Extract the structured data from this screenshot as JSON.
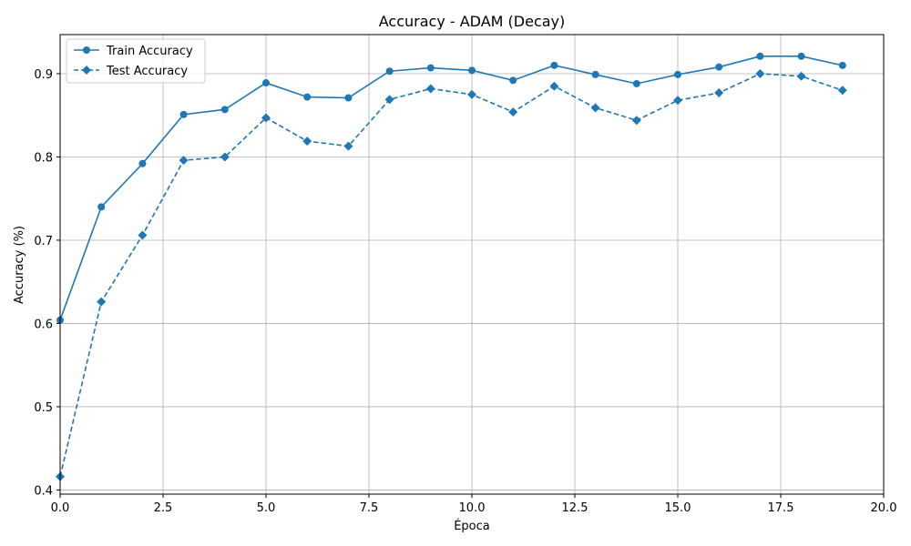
{
  "chart_data": {
    "type": "line",
    "title": "Accuracy - ADAM (Decay)",
    "xlabel": "Época",
    "ylabel": "Accuracy (%)",
    "xlim": [
      0,
      20
    ],
    "ylim": [
      0.395,
      0.947
    ],
    "xticks": [
      0,
      2.5,
      5,
      7.5,
      10,
      12.5,
      15,
      17.5,
      20
    ],
    "xtick_labels": [
      "0.0",
      "2.5",
      "5.0",
      "7.5",
      "10.0",
      "12.5",
      "15.0",
      "17.5",
      "20.0"
    ],
    "yticks": [
      0.4,
      0.5,
      0.6,
      0.7,
      0.8,
      0.9
    ],
    "ytick_labels": [
      "0.4",
      "0.5",
      "0.6",
      "0.7",
      "0.8",
      "0.9"
    ],
    "grid": true,
    "legend_position": "top-left",
    "x": [
      0,
      1,
      2,
      3,
      4,
      5,
      6,
      7,
      8,
      9,
      10,
      11,
      12,
      13,
      14,
      15,
      16,
      17,
      18,
      19
    ],
    "series": [
      {
        "name": "Train Accuracy",
        "marker": "circle",
        "line_style": "solid",
        "color": "#1f77b4",
        "values": [
          0.604,
          0.74,
          0.792,
          0.851,
          0.857,
          0.889,
          0.872,
          0.871,
          0.903,
          0.907,
          0.904,
          0.892,
          0.91,
          0.899,
          0.888,
          0.899,
          0.908,
          0.921,
          0.921,
          0.91
        ]
      },
      {
        "name": "Test Accuracy",
        "marker": "diamond",
        "line_style": "dashed",
        "color": "#1f77b4",
        "values": [
          0.416,
          0.626,
          0.706,
          0.796,
          0.8,
          0.847,
          0.819,
          0.813,
          0.869,
          0.882,
          0.875,
          0.854,
          0.885,
          0.859,
          0.844,
          0.868,
          0.877,
          0.9,
          0.897,
          0.88
        ]
      }
    ]
  }
}
